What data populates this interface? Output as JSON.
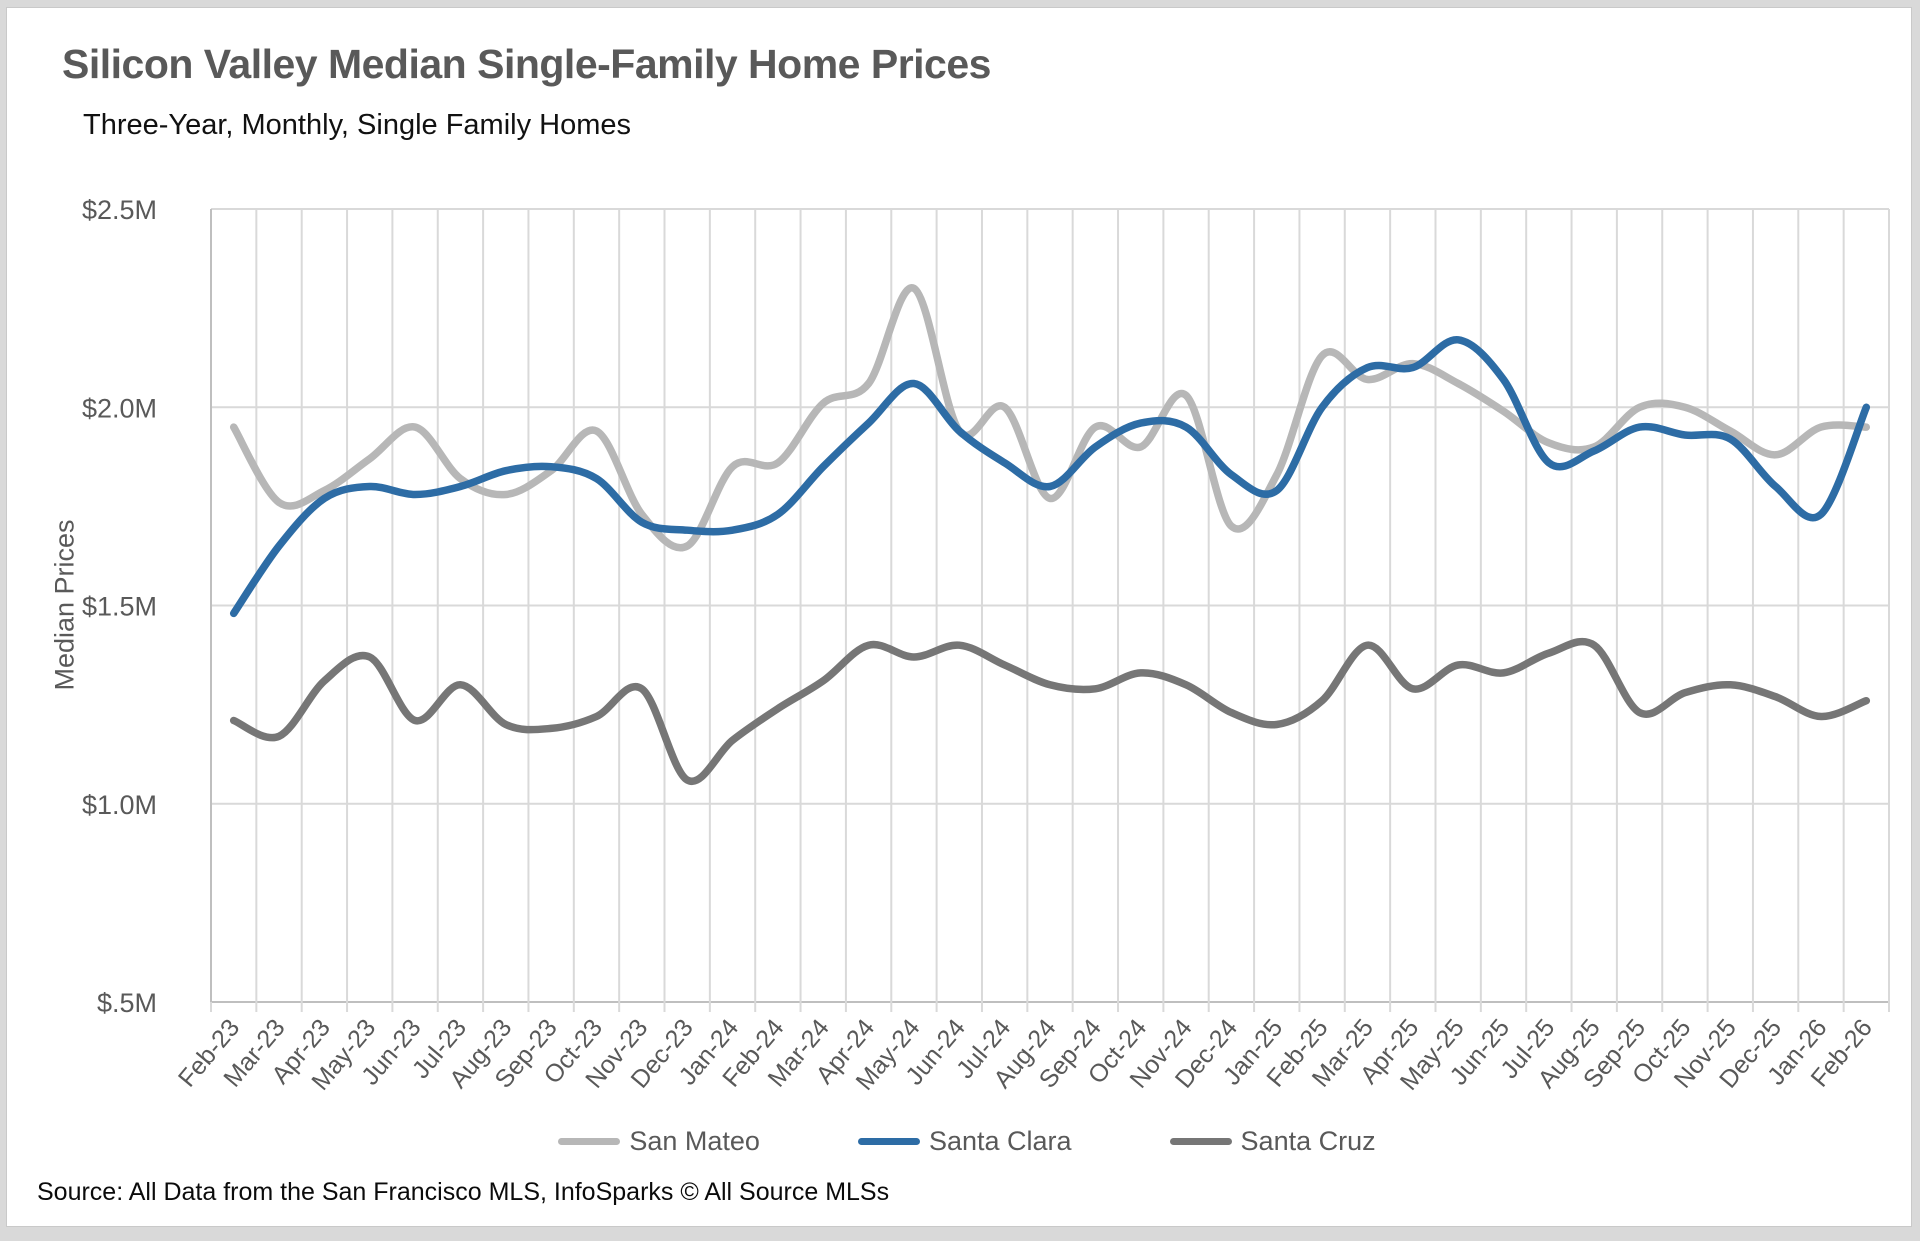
{
  "header": {
    "title": "Silicon Valley Median Single-Family Home Prices",
    "subtitle": "Three-Year, Monthly, Single Family Homes"
  },
  "chart_data": {
    "type": "line",
    "title": "Silicon Valley Median Single-Family Home Prices",
    "subtitle": "Three-Year, Monthly, Single Family Homes",
    "xlabel": "",
    "ylabel": "Median Prices",
    "unit": "$M",
    "ylim": [
      0.5,
      2.5
    ],
    "grid": true,
    "legend_position": "bottom",
    "y_ticks": [
      {
        "label": "$2.5M",
        "value": 2.5
      },
      {
        "label": "$2.0M",
        "value": 2.0
      },
      {
        "label": "$1.5M",
        "value": 1.5
      },
      {
        "label": "$1.0M",
        "value": 1.0
      },
      {
        "label": "$.5M",
        "value": 0.5
      }
    ],
    "categories": [
      "Feb-23",
      "Mar-23",
      "Apr-23",
      "May-23",
      "Jun-23",
      "Jul-23",
      "Aug-23",
      "Sep-23",
      "Oct-23",
      "Nov-23",
      "Dec-23",
      "Jan-24",
      "Feb-24",
      "Mar-24",
      "Apr-24",
      "May-24",
      "Jun-24",
      "Jul-24",
      "Aug-24",
      "Sep-24",
      "Oct-24",
      "Nov-24",
      "Dec-24",
      "Jan-25",
      "Feb-25",
      "Mar-25",
      "Apr-25",
      "May-25",
      "Jun-25",
      "Jul-25",
      "Aug-25",
      "Sep-25",
      "Oct-25",
      "Nov-25",
      "Dec-25",
      "Jan-26",
      "Feb-26"
    ],
    "series": [
      {
        "name": "San Mateo",
        "color": "#b7b7b7",
        "values": [
          1.95,
          1.76,
          1.79,
          1.87,
          1.95,
          1.82,
          1.78,
          1.84,
          1.94,
          1.73,
          1.65,
          1.85,
          1.86,
          2.01,
          2.06,
          2.3,
          1.94,
          2.0,
          1.77,
          1.95,
          1.9,
          2.03,
          1.7,
          1.83,
          2.13,
          2.07,
          2.11,
          2.06,
          1.99,
          1.91,
          1.9,
          2.0,
          2.0,
          1.94,
          1.88,
          1.95,
          1.95
        ]
      },
      {
        "name": "Santa Clara",
        "color": "#2d6ca5",
        "values": [
          1.48,
          1.65,
          1.77,
          1.8,
          1.78,
          1.8,
          1.84,
          1.85,
          1.82,
          1.71,
          1.69,
          1.69,
          1.73,
          1.85,
          1.96,
          2.06,
          1.94,
          1.86,
          1.8,
          1.9,
          1.96,
          1.95,
          1.83,
          1.79,
          2.0,
          2.1,
          2.1,
          2.17,
          2.07,
          1.86,
          1.89,
          1.95,
          1.93,
          1.92,
          1.8,
          1.73,
          2.0
        ]
      },
      {
        "name": "Santa Cruz",
        "color": "#767676",
        "values": [
          1.21,
          1.17,
          1.31,
          1.37,
          1.21,
          1.3,
          1.2,
          1.19,
          1.22,
          1.29,
          1.06,
          1.16,
          1.24,
          1.31,
          1.4,
          1.37,
          1.4,
          1.35,
          1.3,
          1.29,
          1.33,
          1.3,
          1.23,
          1.2,
          1.26,
          1.4,
          1.29,
          1.35,
          1.33,
          1.38,
          1.4,
          1.23,
          1.28,
          1.3,
          1.27,
          1.22,
          1.26
        ]
      }
    ]
  },
  "legend": {
    "items": [
      "San Mateo",
      "Santa Clara",
      "Santa Cruz"
    ]
  },
  "footer": {
    "source": "Source: All Data from the San Francisco MLS, InfoSparks © All Source MLSs"
  },
  "colors": {
    "title_text": "#595959",
    "axis_text": "#595959",
    "gridline": "#d9d9d9",
    "axis_line": "#bfbfbf",
    "card_border": "#c9c9c9",
    "background": "#ffffff"
  }
}
